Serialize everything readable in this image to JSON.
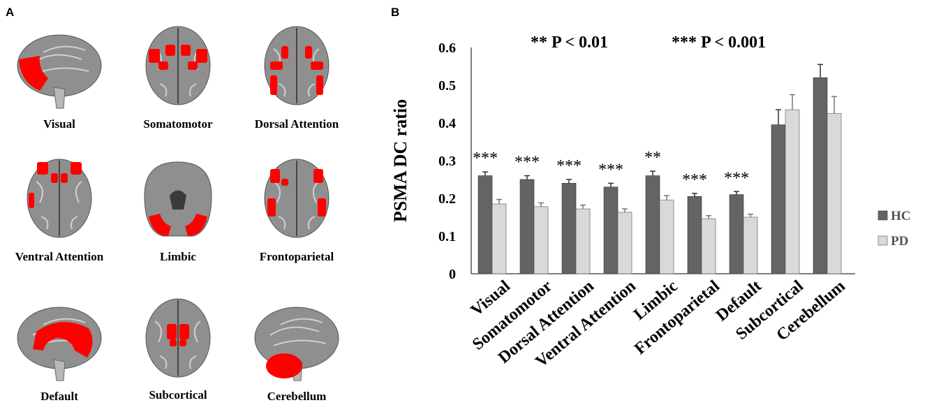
{
  "panels": {
    "a_label": "A",
    "b_label": "B"
  },
  "brain_maps": [
    {
      "label": "Visual",
      "view": "sagittal",
      "highlight": "occipital"
    },
    {
      "label": "Somatomotor",
      "view": "axial",
      "highlight": "central"
    },
    {
      "label": "Dorsal Attention",
      "view": "axial",
      "highlight": "parietal-frontal"
    },
    {
      "label": "Ventral Attention",
      "view": "axial",
      "highlight": "frontal-insula"
    },
    {
      "label": "Limbic",
      "view": "coronal",
      "highlight": "temporal-base"
    },
    {
      "label": "Frontoparietal",
      "view": "axial",
      "highlight": "lateral"
    },
    {
      "label": "Default",
      "view": "sagittal",
      "highlight": "medial"
    },
    {
      "label": "Subcortical",
      "view": "axial",
      "highlight": "basal-ganglia"
    },
    {
      "label": "Cerebellum",
      "view": "sagittal",
      "highlight": "cerebellum"
    }
  ],
  "colors": {
    "hc": "#646464",
    "pd": "#d9d9d9",
    "highlight": "#ff0000",
    "brain": "#8f8f8f"
  },
  "chart_data": {
    "type": "bar",
    "annotation_left": "** P < 0.01",
    "annotation_right": "*** P < 0.001",
    "ylabel": "PSMA DC ratio",
    "ylim": [
      0,
      0.6
    ],
    "yticks": [
      "0",
      "0.1",
      "0.2",
      "0.3",
      "0.4",
      "0.5",
      "0.6"
    ],
    "categories": [
      "Visual",
      "Somatomotor",
      "Dorsal Attention",
      "Ventral Attention",
      "Limbic",
      "Frontoparietal",
      "Default",
      "Subcortical",
      "Cerebellum"
    ],
    "series": [
      {
        "name": "HC",
        "values": [
          0.26,
          0.25,
          0.24,
          0.23,
          0.26,
          0.205,
          0.21,
          0.395,
          0.52
        ],
        "errors": [
          0.01,
          0.01,
          0.01,
          0.01,
          0.012,
          0.008,
          0.008,
          0.04,
          0.035
        ]
      },
      {
        "name": "PD",
        "values": [
          0.185,
          0.178,
          0.172,
          0.163,
          0.195,
          0.146,
          0.15,
          0.435,
          0.425
        ],
        "errors": [
          0.012,
          0.01,
          0.01,
          0.009,
          0.012,
          0.008,
          0.008,
          0.04,
          0.045
        ]
      }
    ],
    "significance": [
      "***",
      "***",
      "***",
      "***",
      "**",
      "***",
      "***",
      "",
      ""
    ],
    "legend": [
      "HC",
      "PD"
    ],
    "legend_position": "right"
  }
}
